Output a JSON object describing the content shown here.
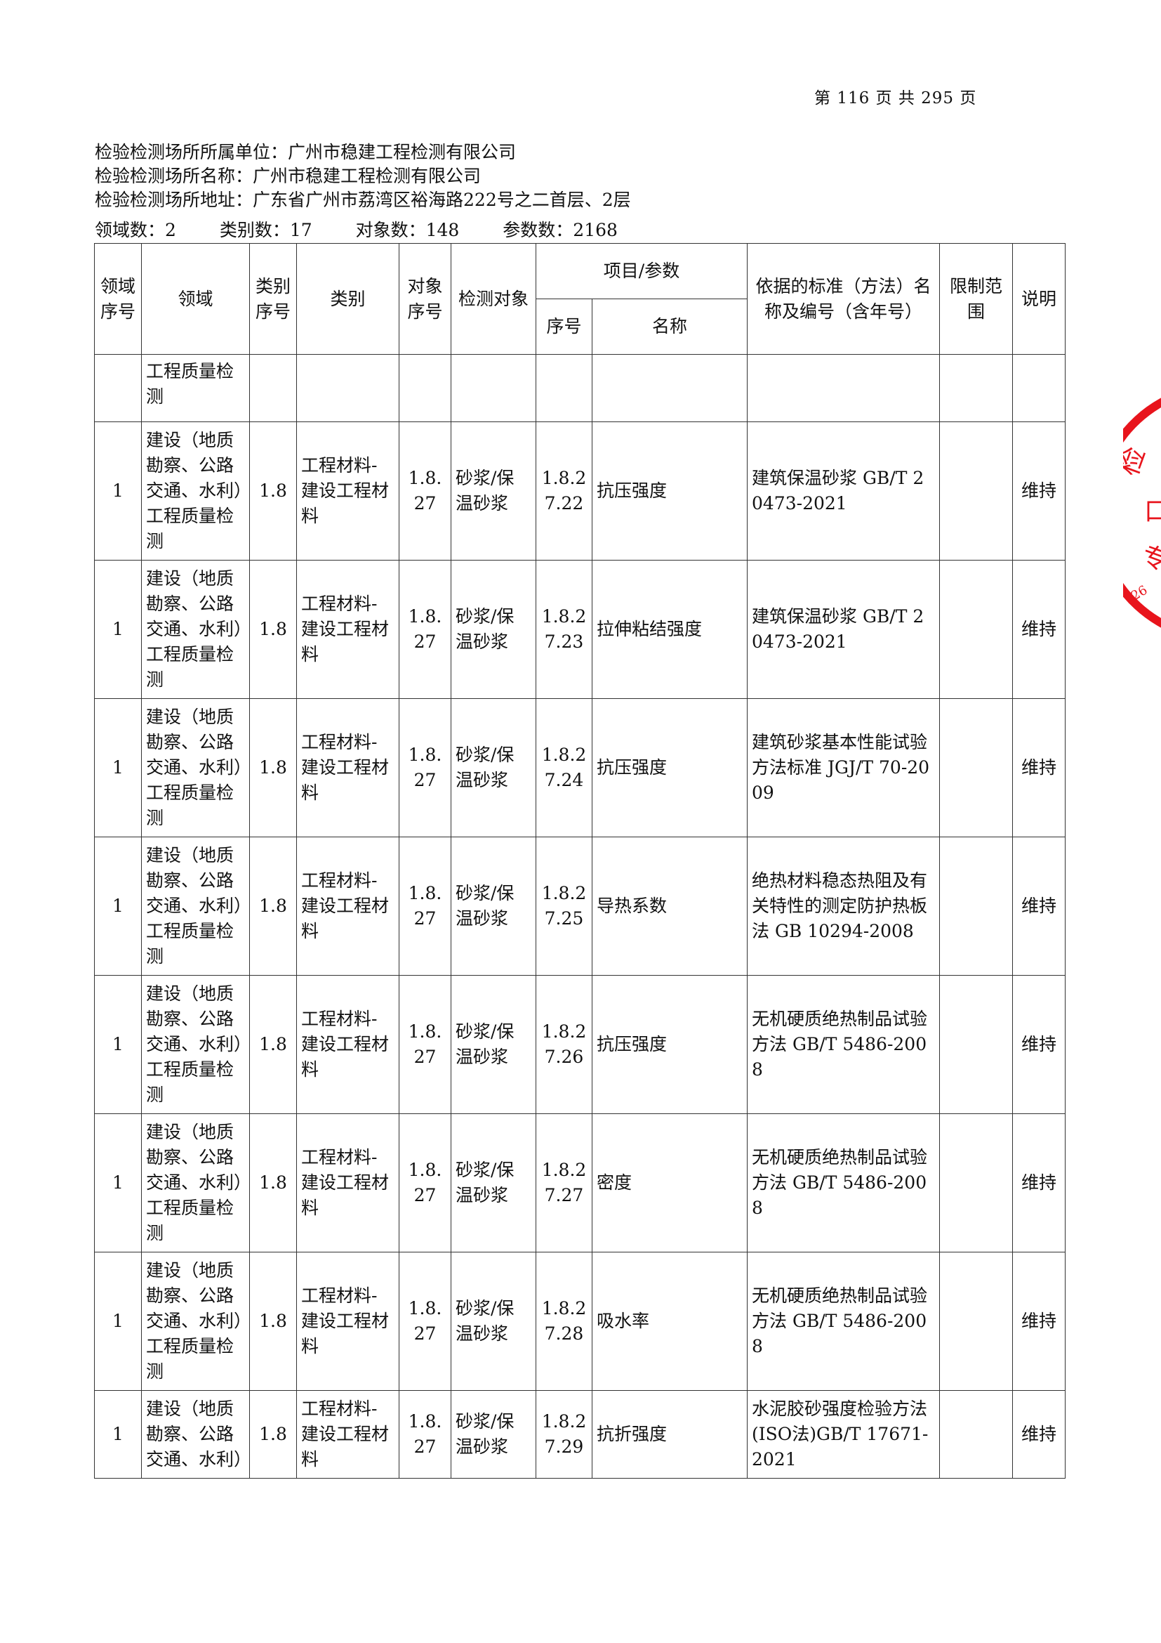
{
  "page_number": {
    "label_prefix": "第",
    "current": "116",
    "label_mid": "页 共",
    "total": "295",
    "label_suffix": "页"
  },
  "info": {
    "unit": "检验检测场所所属单位：广州市稳建工程检测有限公司",
    "name": "检验检测场所名称：广州市稳建工程检测有限公司",
    "address": "检验检测场所地址：广东省广州市荔湾区裕海路222号之二首层、2层",
    "counts": [
      "领域数：2",
      "类别数：17",
      "对象数：148",
      "参数数：2168"
    ]
  },
  "table": {
    "headers": {
      "domain_no": "领域序号",
      "domain": "领域",
      "cat_no": "类别序号",
      "cat": "类别",
      "obj_no": "对象序号",
      "obj": "检测对象",
      "item_group": "项目/参数",
      "item_no": "序号",
      "item_name": "名称",
      "standard": "依据的标准（方法）名称及编号（含年号）",
      "limit": "限制范围",
      "note": "说明"
    },
    "first_row": {
      "domain": "工程质量检测"
    },
    "rows": [
      {
        "domain_no": "1",
        "domain": "建设（地质勘察、公路交通、水利）工程质量检测",
        "cat_no": "1.8",
        "cat": "工程材料-建设工程材料",
        "obj_no": "1.8.27",
        "obj": "砂浆/保温砂浆",
        "item_no": "1.8.27.22",
        "item_name": "抗压强度",
        "standard": "建筑保温砂浆 GB/T 20473-2021",
        "limit": "",
        "note": "维持"
      },
      {
        "domain_no": "1",
        "domain": "建设（地质勘察、公路交通、水利）工程质量检测",
        "cat_no": "1.8",
        "cat": "工程材料-建设工程材料",
        "obj_no": "1.8.27",
        "obj": "砂浆/保温砂浆",
        "item_no": "1.8.27.23",
        "item_name": "拉伸粘结强度",
        "standard": "建筑保温砂浆 GB/T 20473-2021",
        "limit": "",
        "note": "维持"
      },
      {
        "domain_no": "1",
        "domain": "建设（地质勘察、公路交通、水利）工程质量检测",
        "cat_no": "1.8",
        "cat": "工程材料-建设工程材料",
        "obj_no": "1.8.27",
        "obj": "砂浆/保温砂浆",
        "item_no": "1.8.27.24",
        "item_name": "抗压强度",
        "standard": "建筑砂浆基本性能试验方法标准 JGJ/T 70-2009",
        "limit": "",
        "note": "维持"
      },
      {
        "domain_no": "1",
        "domain": "建设（地质勘察、公路交通、水利）工程质量检测",
        "cat_no": "1.8",
        "cat": "工程材料-建设工程材料",
        "obj_no": "1.8.27",
        "obj": "砂浆/保温砂浆",
        "item_no": "1.8.27.25",
        "item_name": "导热系数",
        "standard": "绝热材料稳态热阻及有关特性的测定防护热板法 GB 10294-2008",
        "limit": "",
        "note": "维持"
      },
      {
        "domain_no": "1",
        "domain": "建设（地质勘察、公路交通、水利）工程质量检测",
        "cat_no": "1.8",
        "cat": "工程材料-建设工程材料",
        "obj_no": "1.8.27",
        "obj": "砂浆/保温砂浆",
        "item_no": "1.8.27.26",
        "item_name": "抗压强度",
        "standard": "无机硬质绝热制品试验方法 GB/T 5486-2008",
        "limit": "",
        "note": "维持"
      },
      {
        "domain_no": "1",
        "domain": "建设（地质勘察、公路交通、水利）工程质量检测",
        "cat_no": "1.8",
        "cat": "工程材料-建设工程材料",
        "obj_no": "1.8.27",
        "obj": "砂浆/保温砂浆",
        "item_no": "1.8.27.27",
        "item_name": "密度",
        "standard": "无机硬质绝热制品试验方法 GB/T 5486-2008",
        "limit": "",
        "note": "维持"
      },
      {
        "domain_no": "1",
        "domain": "建设（地质勘察、公路交通、水利）工程质量检测",
        "cat_no": "1.8",
        "cat": "工程材料-建设工程材料",
        "obj_no": "1.8.27",
        "obj": "砂浆/保温砂浆",
        "item_no": "1.8.27.28",
        "item_name": "吸水率",
        "standard": "无机硬质绝热制品试验方法 GB/T 5486-2008",
        "limit": "",
        "note": "维持"
      },
      {
        "domain_no": "1",
        "domain": "建设（地质勘察、公路交通、水利）",
        "cat_no": "1.8",
        "cat": "工程材料-建设工程材料",
        "obj_no": "1.8.27",
        "obj": "砂浆/保温砂浆",
        "item_no": "1.8.27.29",
        "item_name": "抗折强度",
        "standard": "水泥胶砂强度检验方法(ISO法)GB/T 17671-2021",
        "limit": "",
        "note": "维持"
      }
    ]
  },
  "stamp": {
    "color": "#e8141c",
    "text": "26"
  }
}
